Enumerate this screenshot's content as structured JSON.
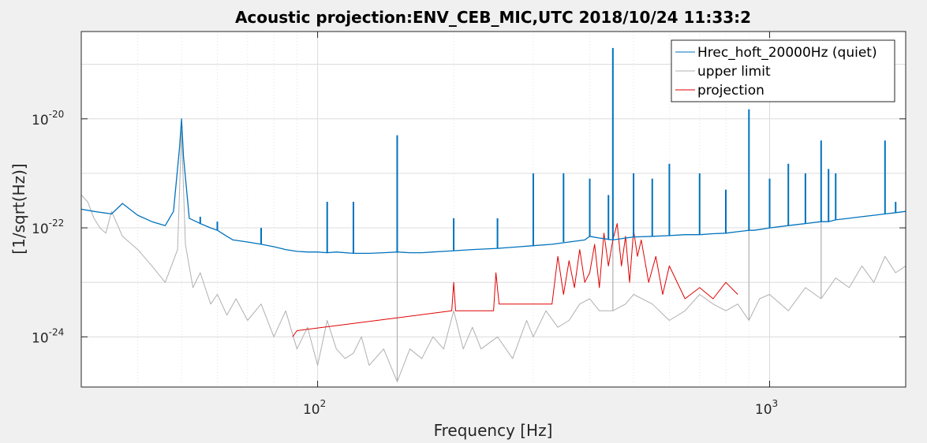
{
  "chart_data": {
    "type": "line",
    "title": "Acoustic projection:ENV_CEB_MIC,UTC 2018/10/24 11:33:2",
    "xlabel": "Frequency [Hz]",
    "ylabel": "[1/sqrt(Hz)]",
    "xscale": "log",
    "yscale": "log",
    "xlim": [
      30,
      2000
    ],
    "ylim": [
      1.2e-25,
      4e-19
    ],
    "grid": true,
    "legend_location": "top-right",
    "xticks": [
      {
        "value": 100,
        "base": "10",
        "exp": "2"
      },
      {
        "value": 1000,
        "base": "10",
        "exp": "3"
      }
    ],
    "yticks": [
      {
        "value": 1e-24,
        "base": "10",
        "exp": "-24"
      },
      {
        "value": 1e-22,
        "base": "10",
        "exp": "-22"
      },
      {
        "value": 1e-20,
        "base": "10",
        "exp": "-20"
      }
    ],
    "series": [
      {
        "name": "Hrec_hoft_20000Hz (quiet)",
        "color": "#0072bd",
        "x": [
          30,
          32,
          35,
          37,
          40,
          43,
          46,
          48,
          49.5,
          50,
          50.5,
          52,
          55,
          58,
          60,
          63,
          65,
          70,
          75,
          80,
          85,
          90,
          95,
          100,
          105,
          110,
          120,
          130,
          140,
          150,
          160,
          170,
          180,
          190,
          200,
          220,
          250,
          280,
          300,
          330,
          360,
          390,
          400,
          420,
          450,
          480,
          500,
          550,
          600,
          650,
          700,
          750,
          800,
          850,
          880,
          900,
          920,
          950,
          1000,
          1100,
          1200,
          1300,
          1350,
          1400,
          1500,
          1600,
          1700,
          1800,
          1900,
          2000
        ],
        "y": [
          2.2e-22,
          2e-22,
          1.8e-22,
          2.8e-22,
          1.7e-22,
          1.3e-22,
          1.1e-22,
          2e-22,
          3e-21,
          1e-20,
          2e-21,
          1.5e-22,
          1.2e-22,
          1e-22,
          9e-23,
          7e-23,
          6e-23,
          5.5e-23,
          5e-23,
          4.5e-23,
          4e-23,
          3.7e-23,
          3.6e-23,
          3.6e-23,
          3.5e-23,
          3.6e-23,
          3.4e-23,
          3.4e-23,
          3.5e-23,
          3.6e-23,
          3.5e-23,
          3.5e-23,
          3.6e-23,
          3.7e-23,
          3.8e-23,
          4e-23,
          4.2e-23,
          4.5e-23,
          4.7e-23,
          5e-23,
          5.5e-23,
          6e-23,
          7e-23,
          6.5e-23,
          6e-23,
          6.5e-23,
          6.8e-23,
          7e-23,
          7.2e-23,
          7.5e-23,
          7.5e-23,
          7.8e-23,
          8e-23,
          8.5e-23,
          8.8e-23,
          9e-23,
          9e-23,
          9.3e-23,
          1e-22,
          1.1e-22,
          1.2e-22,
          1.3e-22,
          1.3e-22,
          1.4e-22,
          1.5e-22,
          1.6e-22,
          1.7e-22,
          1.8e-22,
          1.9e-22,
          2e-22
        ]
      },
      {
        "name": "upper limit",
        "color": "#b0b0b0",
        "x": [
          30,
          31,
          32,
          33,
          34,
          35,
          37,
          40,
          43,
          46,
          49,
          50,
          51,
          53,
          55,
          58,
          60,
          63,
          66,
          70,
          75,
          80,
          85,
          90,
          95,
          100,
          105,
          110,
          115,
          120,
          125,
          130,
          140,
          150,
          160,
          170,
          180,
          190,
          200,
          210,
          220,
          230,
          250,
          270,
          290,
          300,
          320,
          340,
          360,
          380,
          400,
          420,
          450,
          480,
          500,
          550,
          600,
          650,
          700,
          750,
          800,
          850,
          900,
          950,
          1000,
          1100,
          1200,
          1300,
          1400,
          1500,
          1600,
          1700,
          1800,
          1900,
          2000
        ],
        "y": [
          4e-22,
          3e-22,
          1.5e-22,
          1e-22,
          8e-23,
          2e-22,
          7e-23,
          4e-23,
          2e-23,
          1e-23,
          4e-23,
          6e-21,
          5e-23,
          8e-24,
          1.5e-23,
          4e-24,
          6e-24,
          2.5e-24,
          5e-24,
          2e-24,
          4e-24,
          1e-24,
          3e-24,
          6e-25,
          1.5e-24,
          3e-25,
          2e-24,
          6e-25,
          4e-25,
          5e-25,
          1e-24,
          3e-25,
          6e-25,
          1.5e-25,
          6e-25,
          4e-25,
          1e-24,
          6e-25,
          3e-24,
          6e-25,
          1.5e-24,
          6e-25,
          1e-24,
          4e-25,
          2e-24,
          1e-24,
          3e-24,
          1.5e-24,
          2e-24,
          4e-24,
          5e-24,
          3e-24,
          3e-24,
          4e-24,
          6e-24,
          4e-24,
          2e-24,
          3e-24,
          6e-24,
          4e-24,
          3e-24,
          4e-24,
          2e-24,
          5e-24,
          6e-24,
          3e-24,
          8e-24,
          5e-24,
          1.2e-23,
          8e-24,
          2e-23,
          1e-23,
          3e-23,
          1.5e-23,
          2e-23
        ]
      },
      {
        "name": "projection",
        "color": "#e00000",
        "x": [
          88,
          90,
          198,
          200,
          202,
          245,
          248,
          252,
          330,
          340,
          350,
          360,
          370,
          380,
          390,
          400,
          410,
          420,
          430,
          440,
          450,
          460,
          470,
          480,
          490,
          500,
          510,
          520,
          540,
          560,
          580,
          600,
          650,
          700,
          750,
          800,
          850
        ],
        "y": [
          1e-24,
          1.3e-24,
          3e-24,
          1e-23,
          3e-24,
          3e-24,
          1.5e-23,
          4e-24,
          4e-24,
          3e-23,
          6e-24,
          2.5e-23,
          8e-24,
          4e-23,
          1e-23,
          1.5e-23,
          5e-23,
          8e-24,
          8e-23,
          2e-23,
          6e-23,
          1.2e-22,
          2e-23,
          7e-23,
          1e-23,
          9e-23,
          3e-23,
          6e-23,
          1e-23,
          3e-23,
          6e-24,
          2e-23,
          5e-24,
          8e-24,
          5e-24,
          1e-23,
          6e-24
        ]
      }
    ],
    "spikes": [
      {
        "series": 0,
        "x": 37,
        "y": 2.8e-22
      },
      {
        "series": 0,
        "x": 50,
        "y": 1e-20
      },
      {
        "series": 0,
        "x": 55,
        "y": 1.6e-22
      },
      {
        "series": 0,
        "x": 60,
        "y": 1.3e-22
      },
      {
        "series": 0,
        "x": 75,
        "y": 1e-22
      },
      {
        "series": 0,
        "x": 105,
        "y": 3e-22
      },
      {
        "series": 0,
        "x": 120,
        "y": 3e-22
      },
      {
        "series": 0,
        "x": 150,
        "y": 5e-21
      },
      {
        "series": 0,
        "x": 200,
        "y": 1.5e-22
      },
      {
        "series": 0,
        "x": 250,
        "y": 1.5e-22
      },
      {
        "series": 0,
        "x": 300,
        "y": 1e-21
      },
      {
        "series": 0,
        "x": 350,
        "y": 1e-21
      },
      {
        "series": 0,
        "x": 400,
        "y": 8e-22
      },
      {
        "series": 0,
        "x": 440,
        "y": 4e-22
      },
      {
        "series": 0,
        "x": 450,
        "y": 2e-19
      },
      {
        "series": 0,
        "x": 500,
        "y": 1e-21
      },
      {
        "series": 0,
        "x": 550,
        "y": 8e-22
      },
      {
        "series": 0,
        "x": 600,
        "y": 1.5e-21
      },
      {
        "series": 0,
        "x": 700,
        "y": 1e-21
      },
      {
        "series": 0,
        "x": 800,
        "y": 5e-22
      },
      {
        "series": 0,
        "x": 900,
        "y": 1.5e-20
      },
      {
        "series": 0,
        "x": 1000,
        "y": 8e-22
      },
      {
        "series": 0,
        "x": 1100,
        "y": 1.5e-21
      },
      {
        "series": 0,
        "x": 1200,
        "y": 1e-21
      },
      {
        "series": 0,
        "x": 1300,
        "y": 4e-21
      },
      {
        "series": 0,
        "x": 1350,
        "y": 1.2e-21
      },
      {
        "series": 0,
        "x": 1400,
        "y": 1e-21
      },
      {
        "series": 0,
        "x": 1800,
        "y": 4e-21
      },
      {
        "series": 0,
        "x": 1900,
        "y": 3e-22
      },
      {
        "series": 1,
        "x": 150,
        "y": 1e-22
      },
      {
        "series": 1,
        "x": 450,
        "y": 1e-20
      },
      {
        "series": 1,
        "x": 900,
        "y": 2e-21
      },
      {
        "series": 1,
        "x": 1300,
        "y": 4e-22
      }
    ]
  }
}
